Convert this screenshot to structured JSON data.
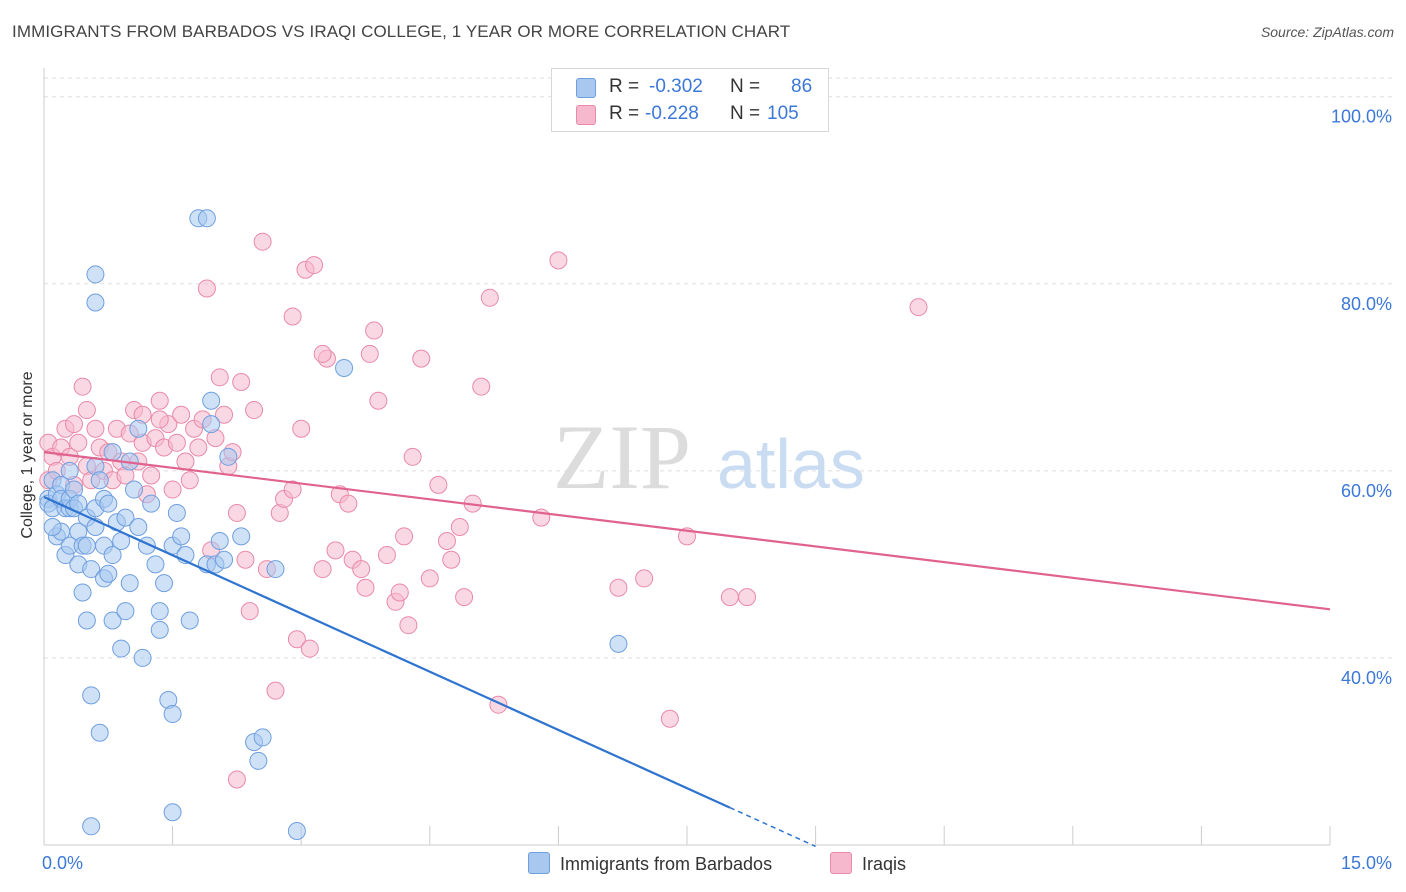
{
  "header": {
    "title": "IMMIGRANTS FROM BARBADOS VS IRAQI COLLEGE, 1 YEAR OR MORE CORRELATION CHART",
    "source": "Source: ZipAtlas.com"
  },
  "watermark": {
    "zip": "ZIP",
    "atlas": "atlas"
  },
  "legend_box": {
    "rows": [
      {
        "r_label": "R =",
        "r_value": "-0.302",
        "n_label": "N =",
        "n_value": "86"
      },
      {
        "r_label": "R =",
        "r_value": "-0.228",
        "n_label": "N =",
        "n_value": "105"
      }
    ]
  },
  "colors": {
    "blue_fill": "#a8c8f0",
    "blue_stroke": "#6f9fe0",
    "blue_line": "#2f74d0",
    "pink_fill": "#f5b8cc",
    "pink_stroke": "#e98aa8",
    "pink_line": "#e0628e",
    "tick_label": "#3c78d8",
    "grid": "#dddddd"
  },
  "chart_data": {
    "type": "scatter",
    "title": "IMMIGRANTS FROM BARBADOS VS IRAQI COLLEGE, 1 YEAR OR MORE CORRELATION CHART",
    "xlabel": "",
    "ylabel": "College, 1 year or more",
    "xlim": [
      0,
      15
    ],
    "ylim": [
      20,
      102
    ],
    "x_tick_labels": [
      "0.0%",
      "15.0%"
    ],
    "y_ticks": [
      40,
      60,
      80,
      100
    ],
    "y_tick_labels": [
      "40.0%",
      "60.0%",
      "80.0%",
      "100.0%"
    ],
    "grid": true,
    "legend_position": "bottom-center",
    "series": [
      {
        "name": "Immigrants from Barbados",
        "R": -0.302,
        "N": 86,
        "trend": {
          "x0": 0.0,
          "y0": 57.2,
          "x1": 8.0,
          "y1": 24.0,
          "dash_to_x": 9.0
        },
        "points": [
          [
            0.05,
            57.0
          ],
          [
            0.05,
            56.5
          ],
          [
            0.1,
            59.0
          ],
          [
            0.1,
            56.0
          ],
          [
            0.15,
            57.5
          ],
          [
            0.15,
            53.0
          ],
          [
            0.2,
            58.5
          ],
          [
            0.2,
            57.0
          ],
          [
            0.2,
            53.5
          ],
          [
            0.25,
            56.0
          ],
          [
            0.25,
            51.0
          ],
          [
            0.3,
            60.0
          ],
          [
            0.3,
            56.0
          ],
          [
            0.3,
            57.0
          ],
          [
            0.3,
            52.0
          ],
          [
            0.35,
            58.0
          ],
          [
            0.35,
            56.0
          ],
          [
            0.4,
            56.5
          ],
          [
            0.4,
            53.5
          ],
          [
            0.4,
            50.0
          ],
          [
            0.45,
            52.0
          ],
          [
            0.45,
            47.0
          ],
          [
            0.5,
            55.0
          ],
          [
            0.5,
            52.0
          ],
          [
            0.5,
            44.0
          ],
          [
            0.55,
            49.5
          ],
          [
            0.55,
            36.0
          ],
          [
            0.6,
            56.0
          ],
          [
            0.6,
            54.0
          ],
          [
            0.6,
            60.5
          ],
          [
            0.65,
            59.0
          ],
          [
            0.7,
            52.0
          ],
          [
            0.7,
            57.0
          ],
          [
            0.7,
            48.5
          ],
          [
            0.75,
            56.5
          ],
          [
            0.8,
            62.0
          ],
          [
            0.75,
            49.0
          ],
          [
            0.8,
            44.0
          ],
          [
            0.8,
            51.0
          ],
          [
            0.85,
            54.5
          ],
          [
            0.9,
            41.0
          ],
          [
            0.9,
            52.5
          ],
          [
            0.95,
            55.0
          ],
          [
            0.95,
            45.0
          ],
          [
            1.0,
            61.0
          ],
          [
            1.0,
            48.0
          ],
          [
            1.05,
            58.0
          ],
          [
            1.1,
            64.5
          ],
          [
            1.1,
            54.0
          ],
          [
            1.15,
            40.0
          ],
          [
            1.2,
            52.0
          ],
          [
            1.25,
            56.5
          ],
          [
            1.3,
            50.0
          ],
          [
            1.35,
            43.0
          ],
          [
            1.35,
            45.0
          ],
          [
            1.4,
            48.0
          ],
          [
            1.45,
            35.5
          ],
          [
            1.5,
            52.0
          ],
          [
            1.5,
            34.0
          ],
          [
            1.5,
            23.5
          ],
          [
            1.55,
            55.5
          ],
          [
            1.6,
            53.0
          ],
          [
            1.65,
            51.0
          ],
          [
            1.7,
            44.0
          ],
          [
            1.8,
            87.0
          ],
          [
            1.9,
            87.0
          ],
          [
            1.9,
            50.0
          ],
          [
            1.95,
            67.5
          ],
          [
            1.95,
            65.0
          ],
          [
            2.0,
            50.0
          ],
          [
            2.05,
            52.5
          ],
          [
            2.1,
            50.5
          ],
          [
            2.15,
            61.5
          ],
          [
            2.3,
            53.0
          ],
          [
            2.45,
            31.0
          ],
          [
            2.5,
            29.0
          ],
          [
            2.55,
            31.5
          ],
          [
            2.7,
            49.5
          ],
          [
            2.95,
            21.5
          ],
          [
            3.5,
            71.0
          ],
          [
            6.7,
            41.5
          ],
          [
            0.6,
            78.0
          ],
          [
            0.6,
            81.0
          ],
          [
            0.55,
            22.0
          ],
          [
            0.65,
            32.0
          ],
          [
            0.1,
            54.0
          ]
        ]
      },
      {
        "name": "Iraqis",
        "R": -0.228,
        "N": 105,
        "trend": {
          "x0": 0.0,
          "y0": 62.0,
          "x1": 15.0,
          "y1": 45.2
        },
        "points": [
          [
            0.05,
            63.0
          ],
          [
            0.05,
            59.0
          ],
          [
            0.1,
            61.5
          ],
          [
            0.15,
            60.0
          ],
          [
            0.2,
            62.5
          ],
          [
            0.25,
            64.5
          ],
          [
            0.3,
            61.5
          ],
          [
            0.35,
            58.5
          ],
          [
            0.4,
            63.0
          ],
          [
            0.45,
            69.0
          ],
          [
            0.5,
            60.5
          ],
          [
            0.55,
            59.0
          ],
          [
            0.6,
            64.5
          ],
          [
            0.65,
            62.5
          ],
          [
            0.7,
            60.0
          ],
          [
            0.75,
            62.0
          ],
          [
            0.8,
            59.0
          ],
          [
            0.85,
            64.5
          ],
          [
            0.9,
            61.0
          ],
          [
            0.95,
            59.5
          ],
          [
            1.0,
            64.0
          ],
          [
            1.05,
            66.5
          ],
          [
            1.1,
            61.0
          ],
          [
            1.15,
            63.0
          ],
          [
            1.2,
            57.5
          ],
          [
            1.25,
            59.5
          ],
          [
            1.3,
            63.5
          ],
          [
            1.35,
            67.5
          ],
          [
            1.4,
            62.5
          ],
          [
            1.45,
            65.0
          ],
          [
            1.5,
            58.0
          ],
          [
            1.55,
            63.0
          ],
          [
            1.6,
            66.0
          ],
          [
            1.65,
            61.0
          ],
          [
            1.7,
            59.0
          ],
          [
            1.75,
            64.5
          ],
          [
            1.8,
            62.5
          ],
          [
            1.85,
            65.5
          ],
          [
            1.9,
            79.5
          ],
          [
            1.95,
            51.5
          ],
          [
            2.0,
            63.5
          ],
          [
            2.05,
            70.0
          ],
          [
            2.1,
            66.0
          ],
          [
            2.15,
            60.5
          ],
          [
            2.2,
            62.0
          ],
          [
            2.25,
            55.5
          ],
          [
            2.3,
            69.5
          ],
          [
            2.35,
            50.5
          ],
          [
            2.4,
            45.0
          ],
          [
            2.45,
            66.5
          ],
          [
            2.55,
            84.5
          ],
          [
            2.6,
            49.5
          ],
          [
            2.7,
            36.5
          ],
          [
            2.75,
            55.5
          ],
          [
            2.8,
            57.0
          ],
          [
            2.9,
            76.5
          ],
          [
            2.95,
            42.0
          ],
          [
            3.0,
            64.5
          ],
          [
            3.05,
            81.5
          ],
          [
            3.1,
            41.0
          ],
          [
            3.15,
            82.0
          ],
          [
            3.25,
            49.5
          ],
          [
            3.3,
            72.0
          ],
          [
            3.4,
            51.5
          ],
          [
            3.45,
            57.5
          ],
          [
            3.55,
            56.5
          ],
          [
            3.6,
            50.5
          ],
          [
            3.7,
            49.5
          ],
          [
            3.75,
            47.5
          ],
          [
            3.8,
            72.5
          ],
          [
            3.85,
            75.0
          ],
          [
            3.9,
            67.5
          ],
          [
            4.0,
            51.0
          ],
          [
            4.1,
            46.0
          ],
          [
            4.15,
            47.0
          ],
          [
            4.2,
            53.0
          ],
          [
            4.25,
            43.5
          ],
          [
            4.3,
            61.5
          ],
          [
            4.4,
            72.0
          ],
          [
            4.5,
            48.5
          ],
          [
            4.6,
            58.5
          ],
          [
            4.7,
            52.5
          ],
          [
            4.75,
            50.5
          ],
          [
            4.85,
            54.0
          ],
          [
            4.9,
            46.5
          ],
          [
            5.0,
            56.5
          ],
          [
            5.1,
            69.0
          ],
          [
            5.2,
            78.5
          ],
          [
            5.3,
            35.0
          ],
          [
            5.8,
            55.0
          ],
          [
            6.0,
            82.5
          ],
          [
            6.7,
            47.5
          ],
          [
            7.0,
            48.5
          ],
          [
            7.3,
            33.5
          ],
          [
            7.5,
            53.0
          ],
          [
            8.0,
            46.5
          ],
          [
            8.2,
            46.5
          ],
          [
            10.2,
            77.5
          ],
          [
            2.25,
            27.0
          ],
          [
            0.35,
            65.0
          ],
          [
            1.15,
            66.0
          ],
          [
            1.35,
            65.5
          ],
          [
            0.5,
            66.5
          ],
          [
            2.9,
            58.0
          ],
          [
            3.25,
            72.5
          ]
        ]
      }
    ]
  }
}
